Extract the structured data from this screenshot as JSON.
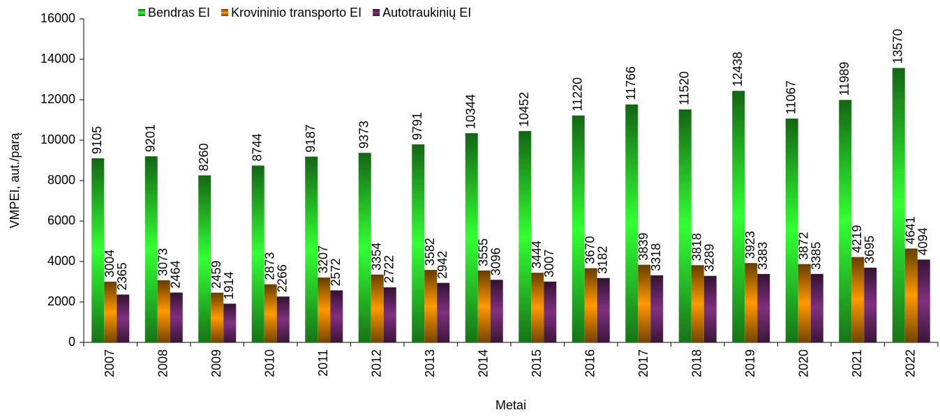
{
  "chart_data": {
    "type": "bar",
    "y_label": "VMPEI, aut./parą",
    "x_label": "Metai",
    "categories": [
      "2007",
      "2008",
      "2009",
      "2010",
      "2011",
      "2012",
      "2013",
      "2014",
      "2015",
      "2016",
      "2017",
      "2018",
      "2019",
      "2020",
      "2021",
      "2022"
    ],
    "series": [
      {
        "name": "Bendras EI",
        "color": "#33ff33",
        "values": [
          9105,
          9201,
          8260,
          8744,
          9187,
          9373,
          9791,
          10344,
          10452,
          11220,
          11766,
          11520,
          12438,
          11067,
          11989,
          13570
        ]
      },
      {
        "name": "Krovininio transporto EI",
        "color": "#ff9900",
        "values": [
          3004,
          3073,
          2459,
          2873,
          3207,
          3354,
          3582,
          3555,
          3444,
          3670,
          3839,
          3818,
          3923,
          3872,
          4219,
          4641
        ]
      },
      {
        "name": "Autotraukinių EI",
        "color": "#80307f",
        "values": [
          2365,
          2464,
          1914,
          2266,
          2572,
          2722,
          2942,
          3096,
          3007,
          3182,
          3318,
          3289,
          3383,
          3385,
          3695,
          4094
        ]
      }
    ],
    "ylim": [
      0,
      16000
    ],
    "yticks": [
      0,
      2000,
      4000,
      6000,
      8000,
      10000,
      12000,
      14000,
      16000
    ],
    "legend": "top"
  }
}
